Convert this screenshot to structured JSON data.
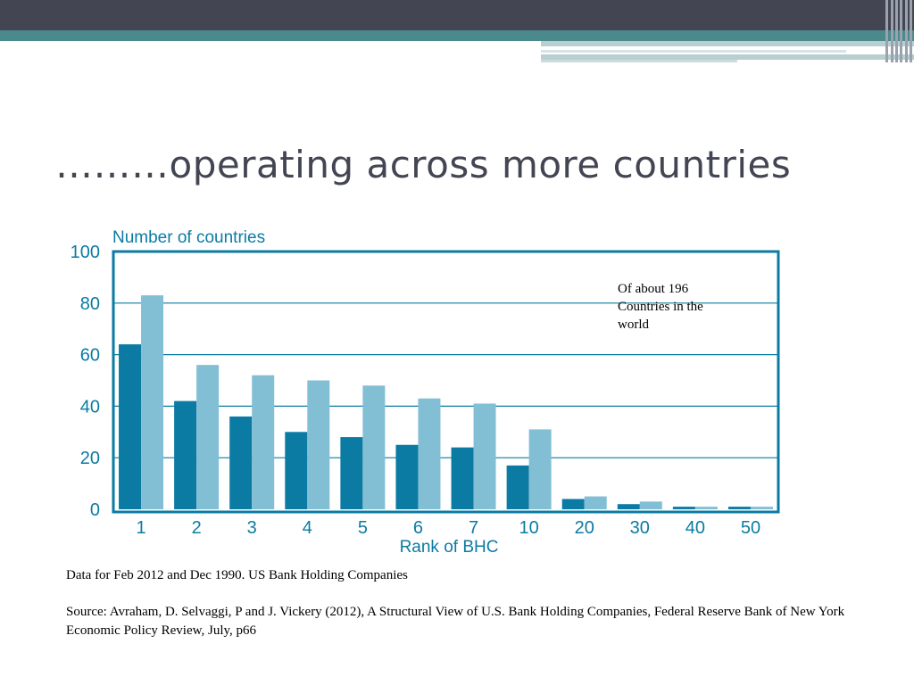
{
  "slide": {
    "title": "………operating across more countries",
    "note": "Of about 196 Countries in the world",
    "caption_data": "Data for  Feb 2012 and Dec 1990. US Bank Holding Companies",
    "caption_source": "Source: Avraham, D.  Selvaggi, P and J. Vickery (2012), A Structural View of U.S. Bank Holding Companies, Federal Reserve Bank of New York Economic Policy Review, July, p66"
  },
  "chart_data": {
    "type": "bar",
    "title": "",
    "ylabel": "Number of countries",
    "xlabel": "Rank of BHC",
    "categories": [
      "1",
      "2",
      "3",
      "4",
      "5",
      "6",
      "7",
      "10",
      "20",
      "30",
      "40",
      "50"
    ],
    "series": [
      {
        "values": [
          64,
          42,
          36,
          30,
          28,
          25,
          24,
          17,
          4,
          2,
          1,
          1
        ],
        "color": "#0b7ba3"
      },
      {
        "values": [
          83,
          56,
          52,
          50,
          48,
          43,
          41,
          31,
          5,
          3,
          1,
          1
        ],
        "color": "#82bfd5"
      }
    ],
    "ylim": [
      0,
      100
    ],
    "yticks": [
      "0",
      "20",
      "40",
      "60",
      "80",
      "100"
    ],
    "grid": true,
    "grid_color": "#0b7ba3",
    "axis_label_color": "#0b7ba3"
  }
}
